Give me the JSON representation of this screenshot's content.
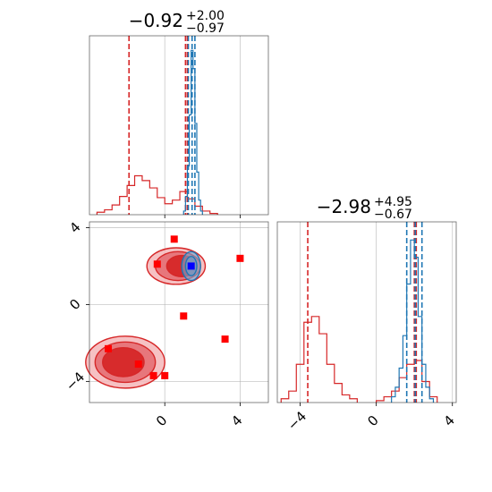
{
  "colors": {
    "red": "#d62728",
    "blue": "#1f77b4",
    "marker_red": "#ff0000",
    "marker_blue": "#0000ff"
  },
  "chart_data": {
    "type": "corner",
    "parameters": [
      {
        "id": "p1",
        "title_main": "−0.92",
        "title_plus": "+2.00",
        "title_minus": "−0.97",
        "range": [
          -2,
          2.8
        ],
        "ticks": [
          0,
          4
        ]
      },
      {
        "id": "p2",
        "title_main": "−2.98",
        "title_plus": "+4.95",
        "title_minus": "−0.67",
        "range": [
          -5.1,
          5.1
        ],
        "ticks": [
          -4,
          0,
          4
        ]
      }
    ],
    "panels": [
      {
        "id": "hist-p1",
        "type": "histogram",
        "xlim": [
          -4,
          5.5
        ],
        "xticks": [
          0,
          4
        ],
        "grid": true,
        "series": [
          {
            "name": "red",
            "color": "#d62728",
            "bins": [
              {
                "x0": -3.6,
                "x1": -3.2,
                "y": 0.2
              },
              {
                "x0": -3.2,
                "x1": -2.8,
                "y": 0.4
              },
              {
                "x0": -2.8,
                "x1": -2.4,
                "y": 0.8
              },
              {
                "x0": -2.4,
                "x1": -2.0,
                "y": 1.5
              },
              {
                "x0": -2.0,
                "x1": -1.6,
                "y": 2.4
              },
              {
                "x0": -1.6,
                "x1": -1.2,
                "y": 3.2
              },
              {
                "x0": -1.2,
                "x1": -0.8,
                "y": 2.8
              },
              {
                "x0": -0.8,
                "x1": -0.4,
                "y": 2.2
              },
              {
                "x0": -0.4,
                "x1": 0.0,
                "y": 1.4
              },
              {
                "x0": 0.0,
                "x1": 0.4,
                "y": 0.9
              },
              {
                "x0": 0.4,
                "x1": 0.8,
                "y": 1.2
              },
              {
                "x0": 0.8,
                "x1": 1.2,
                "y": 1.9
              },
              {
                "x0": 1.2,
                "x1": 1.6,
                "y": 1.3
              },
              {
                "x0": 1.6,
                "x1": 2.0,
                "y": 0.7
              },
              {
                "x0": 2.0,
                "x1": 2.4,
                "y": 0.3
              },
              {
                "x0": 2.4,
                "x1": 2.8,
                "y": 0.1
              }
            ],
            "quantiles": [
              -1.9,
              1.1,
              1.2
            ]
          },
          {
            "name": "blue",
            "color": "#1f77b4",
            "bins": [
              {
                "x0": 1.0,
                "x1": 1.1,
                "y": 0.3
              },
              {
                "x0": 1.1,
                "x1": 1.2,
                "y": 1.5
              },
              {
                "x0": 1.2,
                "x1": 1.3,
                "y": 4.0
              },
              {
                "x0": 1.3,
                "x1": 1.4,
                "y": 8.2
              },
              {
                "x0": 1.4,
                "x1": 1.5,
                "y": 13.5
              },
              {
                "x0": 1.5,
                "x1": 1.6,
                "y": 12.0
              },
              {
                "x0": 1.6,
                "x1": 1.7,
                "y": 7.5
              },
              {
                "x0": 1.7,
                "x1": 1.8,
                "y": 3.5
              },
              {
                "x0": 1.8,
                "x1": 1.9,
                "y": 1.2
              },
              {
                "x0": 1.9,
                "x1": 2.0,
                "y": 0.3
              }
            ],
            "quantiles": [
              1.25,
              1.45,
              1.6
            ]
          }
        ],
        "ymax": 14
      },
      {
        "id": "hist-p2",
        "type": "histogram",
        "xlim": [
          -5.2,
          4.2
        ],
        "xticks": [
          -4,
          0,
          4
        ],
        "grid": true,
        "series": [
          {
            "name": "red",
            "color": "#d62728",
            "bins": [
              {
                "x0": -5.0,
                "x1": -4.6,
                "y": 0.2
              },
              {
                "x0": -4.6,
                "x1": -4.2,
                "y": 0.6
              },
              {
                "x0": -4.2,
                "x1": -3.8,
                "y": 2.0
              },
              {
                "x0": -3.8,
                "x1": -3.4,
                "y": 4.2
              },
              {
                "x0": -3.4,
                "x1": -3.0,
                "y": 4.5
              },
              {
                "x0": -3.0,
                "x1": -2.6,
                "y": 3.6
              },
              {
                "x0": -2.6,
                "x1": -2.2,
                "y": 2.0
              },
              {
                "x0": -2.2,
                "x1": -1.8,
                "y": 1.0
              },
              {
                "x0": -1.8,
                "x1": -1.4,
                "y": 0.4
              },
              {
                "x0": -1.4,
                "x1": -1.0,
                "y": 0.2
              },
              {
                "x0": 0.0,
                "x1": 0.4,
                "y": 0.1
              },
              {
                "x0": 0.4,
                "x1": 0.8,
                "y": 0.3
              },
              {
                "x0": 0.8,
                "x1": 1.2,
                "y": 0.6
              },
              {
                "x0": 1.2,
                "x1": 1.6,
                "y": 1.3
              },
              {
                "x0": 1.6,
                "x1": 2.0,
                "y": 2.0
              },
              {
                "x0": 2.0,
                "x1": 2.4,
                "y": 2.2
              },
              {
                "x0": 2.4,
                "x1": 2.8,
                "y": 1.1
              },
              {
                "x0": 2.8,
                "x1": 3.2,
                "y": 0.3
              }
            ],
            "quantiles": [
              -3.6,
              2.0,
              2.1
            ]
          },
          {
            "name": "blue",
            "color": "#1f77b4",
            "bins": [
              {
                "x0": 0.8,
                "x1": 1.0,
                "y": 0.3
              },
              {
                "x0": 1.0,
                "x1": 1.2,
                "y": 0.8
              },
              {
                "x0": 1.2,
                "x1": 1.4,
                "y": 1.8
              },
              {
                "x0": 1.4,
                "x1": 1.6,
                "y": 3.5
              },
              {
                "x0": 1.6,
                "x1": 1.8,
                "y": 6.2
              },
              {
                "x0": 1.8,
                "x1": 2.0,
                "y": 8.5
              },
              {
                "x0": 2.0,
                "x1": 2.2,
                "y": 7.6
              },
              {
                "x0": 2.2,
                "x1": 2.4,
                "y": 4.5
              },
              {
                "x0": 2.4,
                "x1": 2.6,
                "y": 2.0
              },
              {
                "x0": 2.6,
                "x1": 2.8,
                "y": 0.8
              },
              {
                "x0": 2.8,
                "x1": 3.0,
                "y": 0.2
              }
            ],
            "quantiles": [
              1.6,
              2.05,
              2.4
            ]
          }
        ],
        "ymax": 9
      },
      {
        "id": "scatter-p1-p2",
        "type": "contour-scatter",
        "xlim": [
          -4,
          5.5
        ],
        "ylim": [
          -5.1,
          4.3
        ],
        "xticks": [
          0,
          4
        ],
        "yticks": [
          -4,
          0,
          4
        ],
        "grid": true,
        "red_contours": [
          {
            "cx": -2.1,
            "cy": -3.0,
            "rx": 2.1,
            "ry": 1.35,
            "level": "outer"
          },
          {
            "cx": -2.1,
            "cy": -3.0,
            "rx": 1.6,
            "ry": 1.05,
            "level": "mid"
          },
          {
            "cx": -2.2,
            "cy": -3.0,
            "rx": 1.1,
            "ry": 0.75,
            "level": "inner"
          },
          {
            "cx": 0.6,
            "cy": 2.0,
            "rx": 1.55,
            "ry": 0.95,
            "level": "outer"
          },
          {
            "cx": 0.7,
            "cy": 2.0,
            "rx": 1.2,
            "ry": 0.75,
            "level": "mid"
          },
          {
            "cx": 0.9,
            "cy": 2.0,
            "rx": 0.8,
            "ry": 0.55,
            "level": "inner"
          }
        ],
        "blue_contours": [
          {
            "cx": 1.4,
            "cy": 2.0,
            "rx": 0.5,
            "ry": 0.75
          },
          {
            "cx": 1.4,
            "cy": 2.0,
            "rx": 0.3,
            "ry": 0.5
          }
        ],
        "red_markers": [
          {
            "x": 0.5,
            "y": 3.4
          },
          {
            "x": -0.4,
            "y": 2.1
          },
          {
            "x": 4.0,
            "y": 2.4
          },
          {
            "x": 1.0,
            "y": -0.6
          },
          {
            "x": 3.2,
            "y": -1.8
          },
          {
            "x": -3.0,
            "y": -2.3
          },
          {
            "x": -1.4,
            "y": -3.1
          },
          {
            "x": -0.6,
            "y": -3.7
          },
          {
            "x": 0.0,
            "y": -3.7
          }
        ],
        "blue_markers": [
          {
            "x": 1.4,
            "y": 2.0
          }
        ]
      }
    ]
  }
}
